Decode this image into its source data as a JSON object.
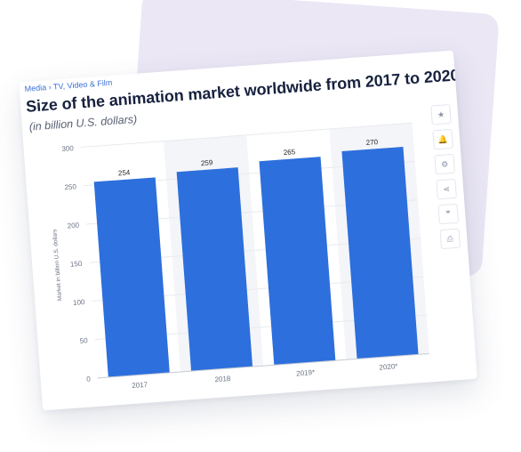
{
  "breadcrumb": "Media › TV, Video & Film",
  "title": "Size of the animation market worldwide from 2017 to 2020",
  "subtitle": "(in billion U.S. dollars)",
  "tools": [
    {
      "icon": "star-icon",
      "glyph": "★"
    },
    {
      "icon": "bell-icon",
      "glyph": "🔔"
    },
    {
      "icon": "gear-icon",
      "glyph": "⚙"
    },
    {
      "icon": "share-icon",
      "glyph": "⋖"
    },
    {
      "icon": "quote-icon",
      "glyph": "❞"
    },
    {
      "icon": "print-icon",
      "glyph": "⎙"
    }
  ],
  "colors": {
    "bar": "#2d6fdc",
    "stripe": "#f4f5f8",
    "grid": "#e8eaef"
  },
  "chart_data": {
    "type": "bar",
    "categories": [
      "2017",
      "2018",
      "2019*",
      "2020*"
    ],
    "values": [
      254,
      259,
      265,
      270
    ],
    "data_labels": [
      "254",
      "259",
      "265",
      "270"
    ],
    "ylabel": "Market in billion U.S. dollars",
    "ylim": [
      0,
      300
    ],
    "yticks": [
      0,
      50,
      100,
      150,
      200,
      250,
      300
    ],
    "grid": true,
    "legend": "none"
  }
}
